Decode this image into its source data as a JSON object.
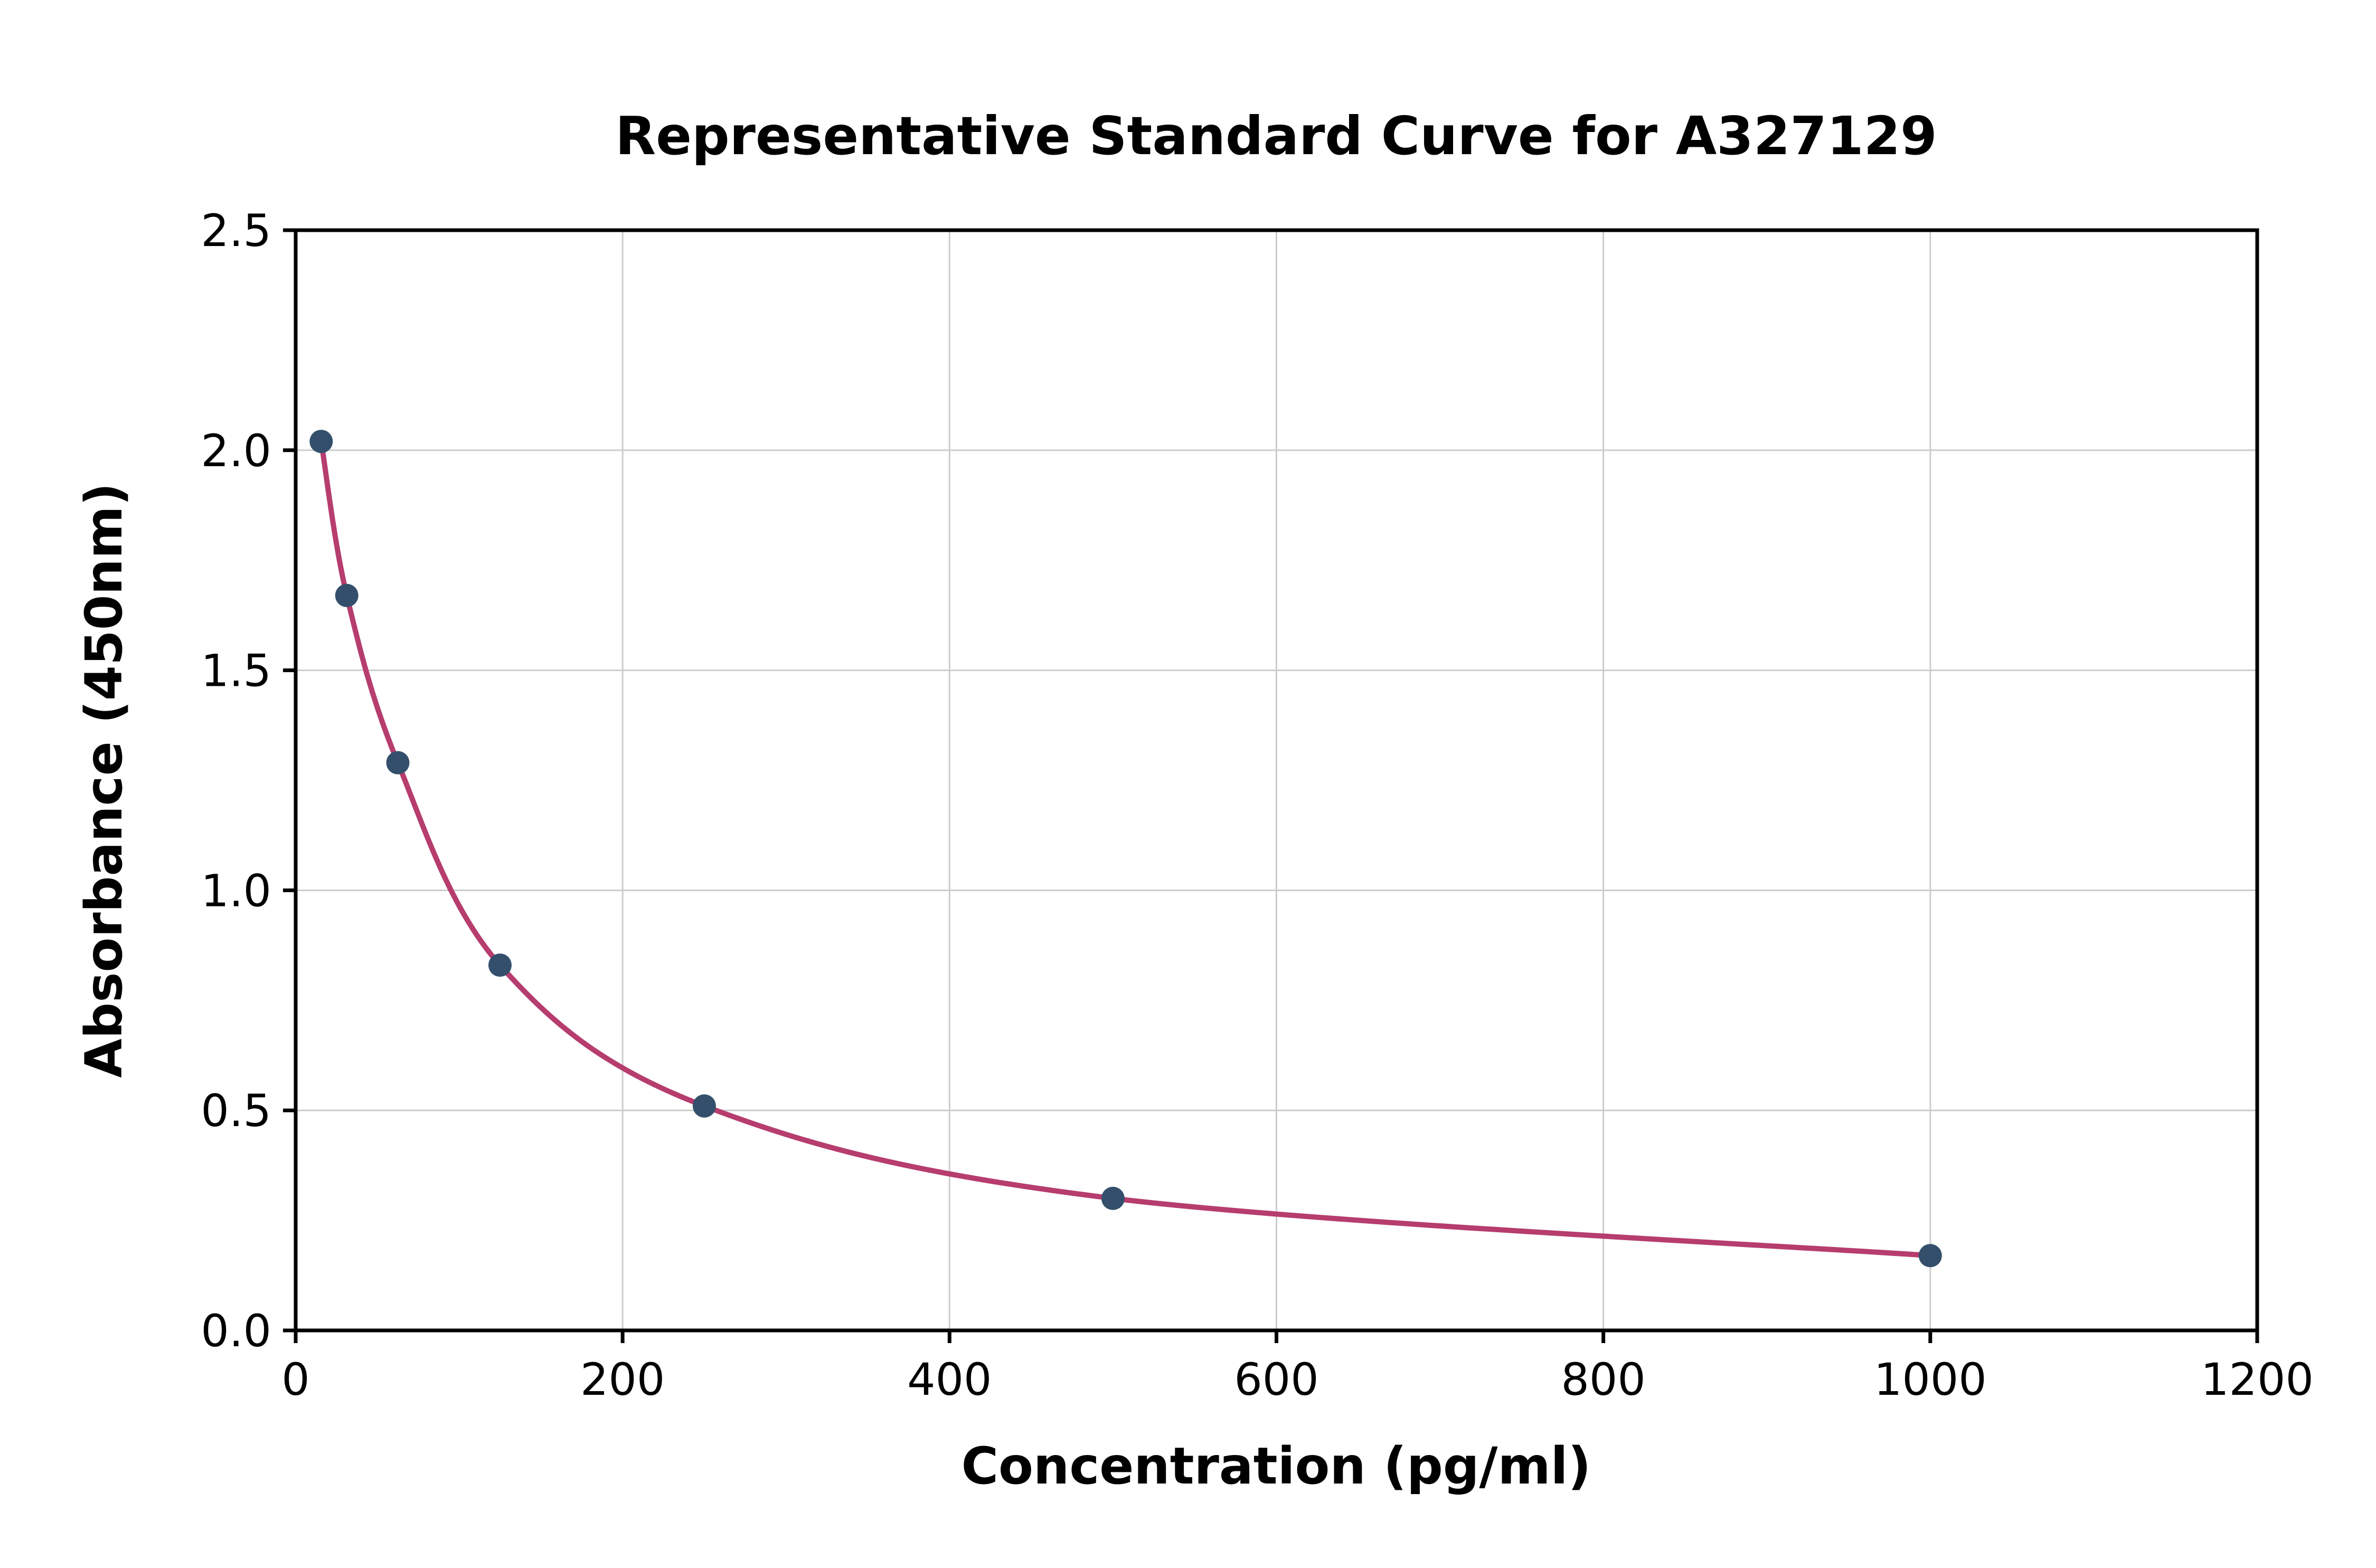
{
  "chart_data": {
    "type": "line",
    "title": "Representative Standard Curve for A327129",
    "xlabel": "Concentration (pg/ml)",
    "ylabel": "Absorbance (450nm)",
    "xlim": [
      0,
      1200
    ],
    "ylim": [
      0,
      2.5
    ],
    "xticks": [
      0,
      200,
      400,
      600,
      800,
      1000,
      1200
    ],
    "xtick_labels": [
      "0",
      "200",
      "400",
      "600",
      "800",
      "1000",
      "1200"
    ],
    "yticks": [
      0,
      0.5,
      1.0,
      1.5,
      2.0,
      2.5
    ],
    "ytick_labels": [
      "0.0",
      "0.5",
      "1.0",
      "1.5",
      "2.0",
      "2.5"
    ],
    "grid": true,
    "legend": "none",
    "points": [
      {
        "x": 15.6,
        "y": 2.02
      },
      {
        "x": 31.25,
        "y": 1.67
      },
      {
        "x": 62.5,
        "y": 1.29
      },
      {
        "x": 125,
        "y": 0.83
      },
      {
        "x": 250,
        "y": 0.51
      },
      {
        "x": 500,
        "y": 0.3
      },
      {
        "x": 1000,
        "y": 0.17
      }
    ],
    "colors": {
      "line": "#b63d6e",
      "marker": "#334f6b",
      "grid": "#cccccc",
      "axis": "#000000",
      "text": "#000000",
      "background": "#ffffff"
    }
  }
}
